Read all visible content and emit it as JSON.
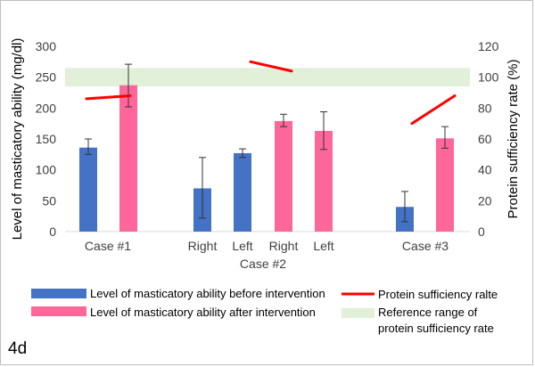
{
  "panel_label": "4d",
  "chart_data": {
    "type": "bar",
    "categories": [
      "Case #1",
      "Case #1",
      "Right",
      "Left",
      "Right",
      "Left",
      "Case #3",
      "Case #3"
    ],
    "group_labels": [
      "Case #1",
      "Case #2",
      "Case #3"
    ],
    "category_ticks": [
      "Case #1",
      "Right",
      "Left",
      "Right",
      "Left",
      "Case #3"
    ],
    "xlabel": "Case #2",
    "ylabel": "Level of masticatory ability (mg/dl)",
    "ylabel_right": "Protein sufficiency rate (%)",
    "ylim": [
      0,
      300
    ],
    "ylim_right": [
      0,
      120
    ],
    "yticks": [
      0,
      50,
      100,
      150,
      200,
      250,
      300
    ],
    "yticks_right": [
      0,
      20,
      40,
      60,
      80,
      100,
      120
    ],
    "series": [
      {
        "name": "Level of masticatory ability before intervention",
        "color": "#4472c4",
        "bars": [
          {
            "label": "Case #1",
            "value": 136,
            "err_low": 125,
            "err_high": 150
          },
          {
            "label": "Case #2 Right",
            "value": 70,
            "err_low": 22,
            "err_high": 120
          },
          {
            "label": "Case #2 Left",
            "value": 127,
            "err_low": 120,
            "err_high": 134
          },
          {
            "label": "Case #3",
            "value": 40,
            "err_low": 16,
            "err_high": 65
          }
        ]
      },
      {
        "name": "Level of masticatory ability after intervention",
        "color": "#ff6699",
        "bars": [
          {
            "label": "Case #1",
            "value": 237,
            "err_low": 202,
            "err_high": 271
          },
          {
            "label": "Case #2 Right",
            "value": 179,
            "err_low": 170,
            "err_high": 190
          },
          {
            "label": "Case #2 Left",
            "value": 163,
            "err_low": 133,
            "err_high": 194
          },
          {
            "label": "Case #3",
            "value": 151,
            "err_low": 135,
            "err_high": 170
          }
        ]
      },
      {
        "name": "Protein sufficiency ralte",
        "color": "#ff0000",
        "axis": "right",
        "segments": [
          {
            "label": "Case #1",
            "start": 86,
            "end": 88
          },
          {
            "label": "Case #2",
            "start": 110,
            "end": 104
          },
          {
            "label": "Case #3",
            "start": 70,
            "end": 88
          }
        ]
      },
      {
        "name": "Reference range of protein  sufficiency rate",
        "color": "#e2efd9",
        "axis": "right",
        "range": [
          94,
          106
        ]
      }
    ],
    "legend_placement": "bottom"
  }
}
